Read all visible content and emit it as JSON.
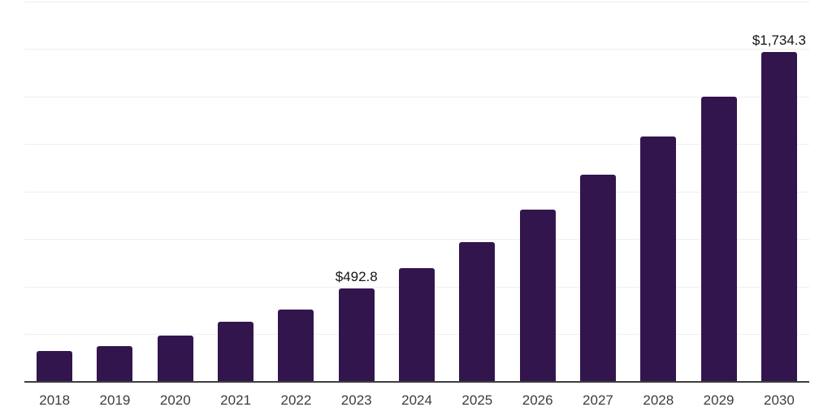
{
  "chart_data": {
    "type": "bar",
    "title": "",
    "xlabel": "",
    "ylabel": "",
    "categories": [
      "2018",
      "2019",
      "2020",
      "2021",
      "2022",
      "2023",
      "2024",
      "2025",
      "2026",
      "2027",
      "2028",
      "2029",
      "2030"
    ],
    "values": [
      164,
      188,
      245,
      315,
      382,
      492.8,
      600,
      734,
      905,
      1088,
      1289,
      1500,
      1734.3
    ],
    "value_labels": [
      "",
      "",
      "",
      "",
      "",
      "$492.8",
      "",
      "",
      "",
      "",
      "",
      "",
      "$1,734.3"
    ],
    "ylim": [
      0,
      2000
    ],
    "gridline_step": 250,
    "grid": true,
    "y_axis_labels_visible": false,
    "legend_position": "none",
    "colors": {
      "bar": "#33154e",
      "gridline": "#efefef",
      "axis_line": "#3e3e3e",
      "tick_label": "#3d3d3d",
      "value_label": "#141414"
    }
  }
}
